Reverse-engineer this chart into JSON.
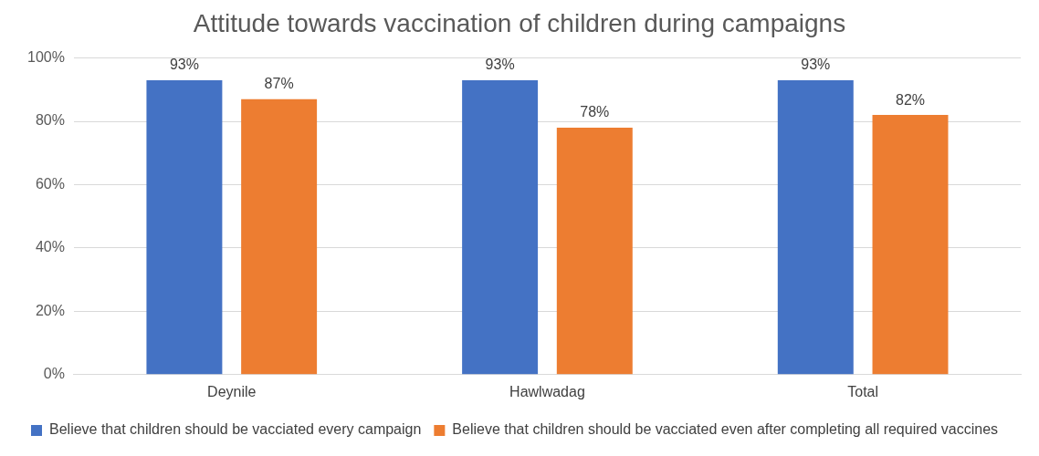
{
  "chart_data": {
    "type": "bar",
    "title": "Attitude towards vaccination of children during campaigns",
    "categories": [
      "Deynile",
      "Hawlwadag",
      "Total"
    ],
    "series": [
      {
        "name": "Believe that children should be vacciated every campaign",
        "color": "#4472c4",
        "values": [
          93,
          93,
          93
        ],
        "value_labels": [
          "93%",
          "93%",
          "93%"
        ]
      },
      {
        "name": "Believe that children should be vacciated even after completing all required vaccines",
        "color": "#ed7d31",
        "values": [
          87,
          78,
          82
        ],
        "value_labels": [
          "87%",
          "78%",
          "82%"
        ]
      }
    ],
    "ylim": [
      0,
      100
    ],
    "yticks": [
      {
        "value": 0,
        "label": "0%"
      },
      {
        "value": 20,
        "label": "20%"
      },
      {
        "value": 40,
        "label": "40%"
      },
      {
        "value": 60,
        "label": "60%"
      },
      {
        "value": 80,
        "label": "80%"
      },
      {
        "value": 100,
        "label": "100%"
      }
    ],
    "grid": "y",
    "legend": "bottom"
  }
}
